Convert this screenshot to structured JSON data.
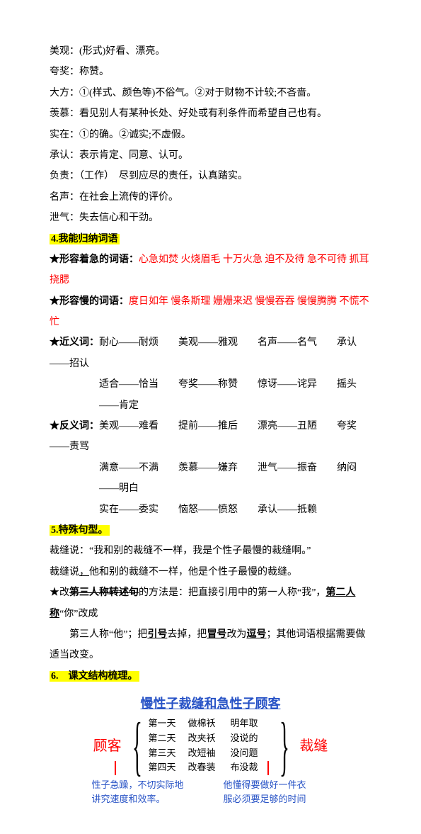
{
  "defs": {
    "l1": "美观：(形式)好看、漂亮。",
    "l2": "夸奖：称赞。",
    "l3": "大方：①(样式、颜色等)不俗气。②对于财物不计较;不吝啬。",
    "l4": "羡慕：看见别人有某种长处、好处或有利条件而希望自己也有。",
    "l5": "实在：①的确。②诚实;不虚假。",
    "l6": "承认：表示肯定、同意、认可。",
    "l7": "负责：（工作）　尽到应尽的责任，认真踏实。",
    "l8": "名声：在社会上流传的评价。",
    "l9": "泄气：失去信心和干劲。"
  },
  "sec4": {
    "title": "4.我能归纳词语",
    "row1_label": "★形容着急的词语：",
    "row1_red": "心急如焚 火烧眉毛 十万火急 迫不及待 急不可待 抓耳挠腮",
    "row2_label": "★形容慢的词语：",
    "row2_red": "度日如年 慢条斯理 姗姗来迟 慢慢吞吞 慢慢腾腾 不慌不忙",
    "jyc_label": "★近义词：",
    "jyc_r1": "耐心——耐烦　　美观——雅观　　名声——名气　　承认——招认",
    "jyc_r2": "适合——恰当　　夸奖——称赞　　惊讶——诧异　　摇头——肯定",
    "fyc_label": "★反义词：",
    "fyc_r1": "美观——难看　　提前——推后　　漂亮——丑陋　　夸奖——责骂",
    "fyc_r2": "满意——不满　　羡慕——嫌弃　　泄气——振奋　　纳闷——明白",
    "fyc_r3": "实在——委实　　恼怒——愤怒　　承认——抵赖"
  },
  "sec5": {
    "title": "5.特殊句型。",
    "l1": "裁缝说：“我和别的裁缝不一样，我是个性子最慢的裁缝啊。”",
    "l2_a": "裁缝说",
    "l2_b": "，",
    "l2_c": "他和别的裁缝不一样，他是个性子最慢的裁缝。",
    "rule1_a": "★改",
    "rule1_b": "第三人称转述句",
    "rule1_c": "的方法是：把直接引用中的第一人称“我”，",
    "rule1_d": "第二人称",
    "rule1_e": "“你”改成",
    "rule2_a": "第三人称“他”；把",
    "rule2_b": "引号",
    "rule2_c": "去掉，把",
    "rule2_d": "冒号",
    "rule2_e": "改为",
    "rule2_f": "逗号",
    "rule2_g": "；其他词语根据需要做适当改变。"
  },
  "sec6": {
    "title": "6.　课文结构梳理。",
    "heading": "慢性子裁缝和急性子顾客",
    "left": "顾客",
    "right": "裁缝",
    "rows": [
      {
        "c1": "第一天",
        "c2": "做棉袄",
        "c3": "明年取"
      },
      {
        "c1": "第二天",
        "c2": "改夹袄",
        "c3": "没说的"
      },
      {
        "c1": "第三天",
        "c2": "改短袖",
        "c3": "没问题"
      },
      {
        "c1": "第四天",
        "c2": "改春装",
        "c3": "布没裁"
      }
    ],
    "note_left_l1": "性子急躁，不切实际地",
    "note_left_l2": "讲究速度和效率。",
    "note_right_l1": "他懂得要做好一件衣",
    "note_right_l2": "服必须要足够的时间"
  }
}
